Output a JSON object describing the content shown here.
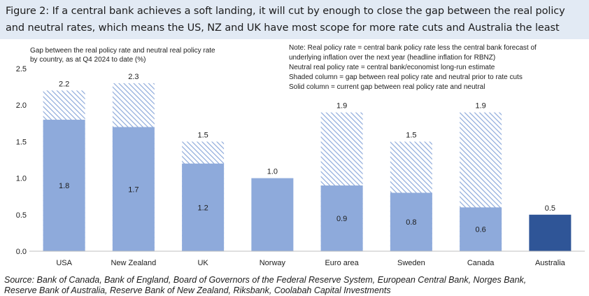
{
  "figure": {
    "title_lines": [
      "Figure 2: If a central bank achieves a soft landing, it will cut by enough to close the gap between the real policy",
      "and neutral rates, which means the US, NZ and UK have most scope for more rate cuts and Australia the least"
    ],
    "source_lines": [
      "Source: Bank of Canada, Bank of England, Board of Governors of the Federal Reserve System, European Central Bank, Norges Bank,",
      "Reserve Bank of Australia, Reserve Bank of New Zealand, Riksbank, Coolabah Capital Investments"
    ]
  },
  "chart_data": {
    "type": "bar",
    "stacking": "overlay",
    "title": "",
    "subtitle_lines": [
      "Gap between the real policy rate and neutral real policy rate",
      "by country, as at Q4 2024 to date (%)"
    ],
    "note_lines": [
      "Note: Real policy rate = central bank policy rate less the central bank forecast of",
      "underlying inflation over the next year (headline inflation for RBNZ)",
      "Neutral real policy rate = central bank/economist long-run estimate",
      "Shaded column = gap between real policy rate and neutral prior to rate cuts",
      "Solid column = current gap between real policy rate and neutral"
    ],
    "categories": [
      "USA",
      "New Zealand",
      "UK",
      "Norway",
      "Euro area",
      "Sweden",
      "Canada",
      "Australia"
    ],
    "series": [
      {
        "values": [
          2.2,
          2.3,
          1.5,
          1.0,
          1.9,
          1.5,
          1.9,
          0.5
        ],
        "labels": [
          "2.2",
          "2.3",
          "1.5",
          "1.0",
          "1.9",
          "1.5",
          "1.9",
          "0.5"
        ],
        "style": "hatched",
        "color": "#8eaadb"
      },
      {
        "values": [
          1.8,
          1.7,
          1.2,
          1.0,
          0.9,
          0.8,
          0.6,
          0.5
        ],
        "labels": [
          "1.8",
          "1.7",
          "1.2",
          "",
          "0.9",
          "0.8",
          "0.6",
          ""
        ],
        "style": "solid",
        "color": "#8eaadb"
      }
    ],
    "highlight": {
      "category": "Australia",
      "color": "#2f5597"
    },
    "yticks": [
      "0.0",
      "0.5",
      "1.0",
      "1.5",
      "2.0",
      "2.5"
    ],
    "ylim": [
      0,
      2.5
    ],
    "grid": false,
    "colors": {
      "bar": "#8eaadb",
      "hatch_stroke": "#8eaadb",
      "highlight": "#2f5597",
      "axis": "#bfbfbf",
      "text": "#1c1c1c"
    }
  }
}
